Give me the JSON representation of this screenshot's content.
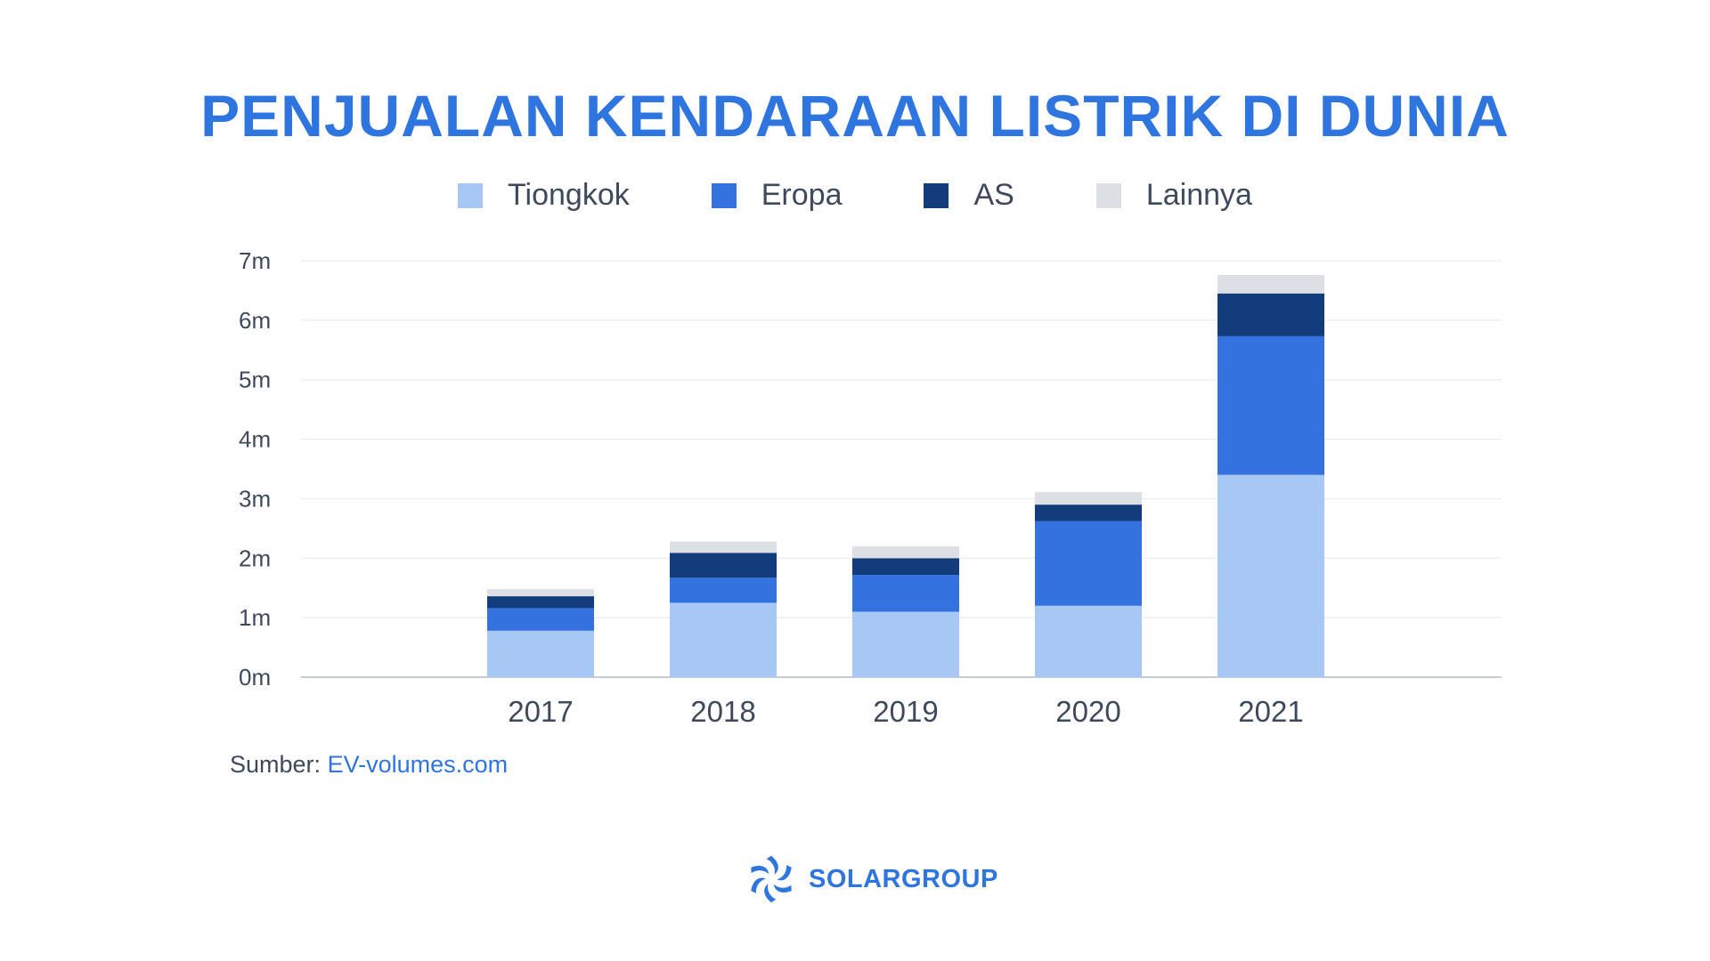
{
  "chart_data": {
    "type": "bar",
    "stacked": true,
    "title": "PENJUALAN KENDARAAN LISTRIK DI DUNIA",
    "categories": [
      "2017",
      "2018",
      "2019",
      "2020",
      "2021"
    ],
    "series": [
      {
        "name": "Tiongkok",
        "color": "#a7c8f4",
        "values": [
          0.78,
          1.25,
          1.1,
          1.2,
          3.4
        ]
      },
      {
        "name": "Eropa",
        "color": "#3472e0",
        "values": [
          0.38,
          0.42,
          0.62,
          1.42,
          2.33
        ]
      },
      {
        "name": "AS",
        "color": "#133c7d",
        "values": [
          0.2,
          0.42,
          0.28,
          0.28,
          0.72
        ]
      },
      {
        "name": "Lainnya",
        "color": "#dcdfe4",
        "values": [
          0.12,
          0.19,
          0.2,
          0.21,
          0.31
        ]
      }
    ],
    "y_ticks": [
      "0m",
      "1m",
      "2m",
      "3m",
      "4m",
      "5m",
      "6m",
      "7m"
    ],
    "ylim": [
      0,
      7
    ],
    "grid": true,
    "legend_position": "top"
  },
  "source": {
    "label": "Sumber:",
    "link_text": "EV-volumes.com"
  },
  "brand": {
    "name": "SOLARGROUP",
    "icon": "solar-spiral-logo-icon"
  },
  "colors": {
    "title": "#2f75e0",
    "text": "#3e4a5c",
    "grid": "#e6e8ec",
    "axis": "#c7ccd3"
  }
}
